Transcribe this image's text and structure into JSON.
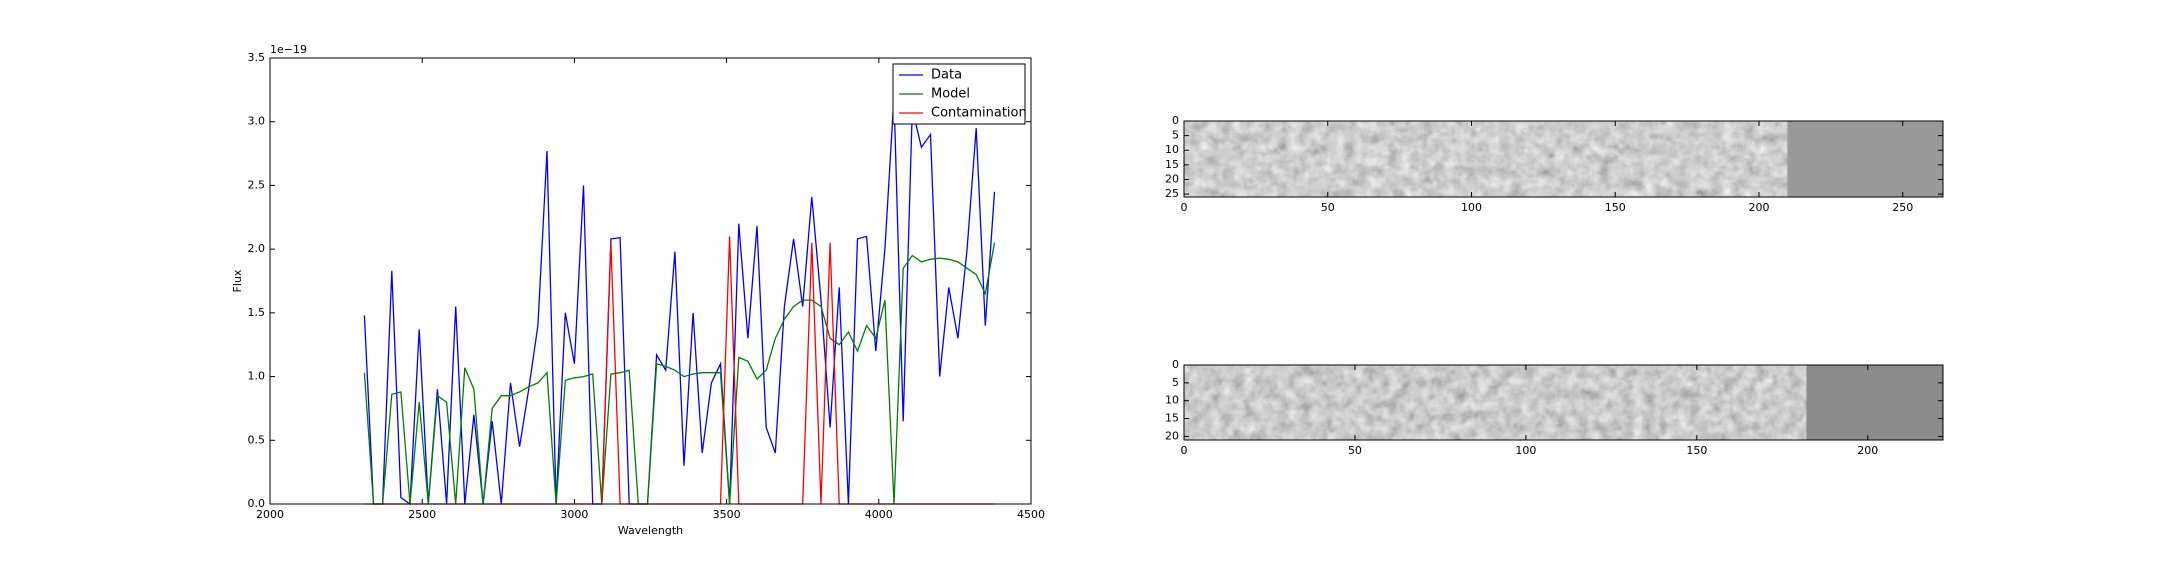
{
  "chart_data": [
    {
      "type": "line",
      "xlabel": "Wavelength",
      "ylabel": "Flux",
      "y_offset_label": "1e−19",
      "xlim": [
        2000,
        4500
      ],
      "xticks": [
        2000,
        2500,
        3000,
        3500,
        4000,
        4500
      ],
      "ylim": [
        0,
        3.5
      ],
      "yticks": [
        {
          "value": 0,
          "label": "0.0"
        },
        0.5,
        {
          "value": 1,
          "label": "1.0"
        },
        1.5,
        {
          "value": 2,
          "label": "2.0"
        },
        2.5,
        {
          "value": 3,
          "label": "3.0"
        },
        3.5
      ],
      "legend": "upper right",
      "x": [
        2310,
        2340,
        2370,
        2400,
        2430,
        2460,
        2490,
        2520,
        2550,
        2580,
        2610,
        2640,
        2670,
        2700,
        2730,
        2760,
        2790,
        2820,
        2850,
        2880,
        2910,
        2940,
        2970,
        3000,
        3030,
        3060,
        3090,
        3120,
        3150,
        3180,
        3210,
        3240,
        3270,
        3300,
        3330,
        3360,
        3390,
        3420,
        3450,
        3480,
        3510,
        3540,
        3570,
        3600,
        3630,
        3660,
        3690,
        3720,
        3750,
        3780,
        3810,
        3840,
        3870,
        3900,
        3930,
        3960,
        3990,
        4020,
        4050,
        4080,
        4110,
        4140,
        4170,
        4200,
        4230,
        4260,
        4290,
        4320,
        4350,
        4380
      ],
      "series": [
        {
          "name": "Data",
          "color": "#0000ff",
          "values": [
            1.48,
            0,
            0,
            1.83,
            0.05,
            0,
            1.37,
            0,
            0.9,
            0,
            1.55,
            0,
            0.7,
            0,
            0.65,
            0,
            0.95,
            0.45,
            0.9,
            1.4,
            2.77,
            0,
            1.5,
            1.1,
            2.5,
            0,
            0,
            2.08,
            2.09,
            0,
            0,
            0,
            1.17,
            1.05,
            1.98,
            0.3,
            1.5,
            0.4,
            0.95,
            1.1,
            0,
            2.2,
            1.3,
            2.18,
            0.6,
            0.4,
            1.55,
            2.08,
            1.55,
            2.41,
            1.6,
            0.6,
            1.7,
            0,
            2.08,
            2.1,
            1.2,
            2.0,
            3.2,
            0.65,
            3.1,
            2.8,
            2.9,
            1.0,
            1.7,
            1.3,
            2.0,
            2.95,
            1.4,
            2.45
          ]
        },
        {
          "name": "Model",
          "color": "#008000",
          "values": [
            1.03,
            0,
            0,
            0.86,
            0.88,
            0,
            0.8,
            0,
            0.85,
            0.8,
            0,
            1.07,
            0.9,
            0,
            0.75,
            0.85,
            0.85,
            0.88,
            0.92,
            0.95,
            1.03,
            0,
            0.97,
            0.99,
            1.0,
            1.02,
            0,
            1.02,
            1.03,
            1.05,
            0,
            0,
            1.1,
            1.08,
            1.05,
            1.0,
            1.02,
            1.03,
            1.03,
            1.03,
            0,
            1.15,
            1.12,
            0.98,
            1.05,
            1.3,
            1.45,
            1.55,
            1.6,
            1.6,
            1.55,
            1.3,
            1.25,
            1.35,
            1.2,
            1.4,
            1.3,
            1.6,
            0,
            1.85,
            1.95,
            1.9,
            1.92,
            1.93,
            1.92,
            1.9,
            1.85,
            1.8,
            1.65,
            2.05
          ]
        },
        {
          "name": "Contamination",
          "color": "#ff0000",
          "values": [
            0,
            0,
            0,
            0,
            0,
            0,
            0,
            0,
            0,
            0,
            0,
            0,
            0,
            0,
            0,
            0,
            0,
            0,
            0,
            0,
            0,
            0,
            0,
            0,
            0,
            0,
            0,
            2.05,
            0,
            0,
            0,
            0,
            0,
            0,
            0,
            0,
            0,
            0,
            0,
            0,
            2.1,
            0,
            0,
            0,
            0,
            0,
            0,
            0,
            0,
            2.05,
            0,
            2.05,
            0,
            0,
            0,
            0,
            0,
            0,
            0,
            0,
            0,
            0,
            0,
            0,
            0,
            0,
            0,
            0,
            0,
            0
          ]
        }
      ]
    },
    {
      "type": "image",
      "xlim": [
        0,
        264
      ],
      "xticks": [
        0,
        50,
        100,
        150,
        200,
        250
      ],
      "ylim": [
        26,
        0
      ],
      "yticks": [
        0,
        5,
        10,
        15,
        20,
        25
      ]
    },
    {
      "type": "image",
      "xlim": [
        0,
        222
      ],
      "xticks": [
        0,
        50,
        100,
        150,
        200
      ],
      "ylim": [
        21,
        0
      ],
      "yticks": [
        0,
        5,
        10,
        15,
        20
      ]
    }
  ]
}
